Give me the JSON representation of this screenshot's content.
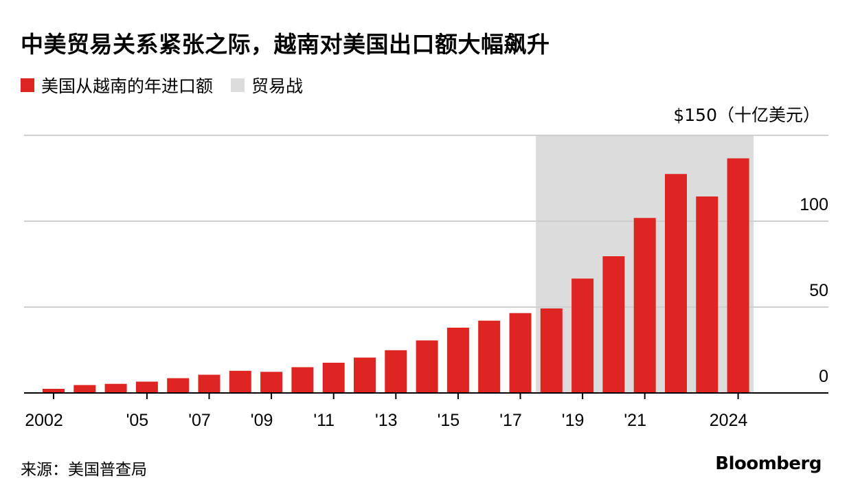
{
  "title": "中美贸易关系紧张之际，越南对美国出口额大幅飙升",
  "legend": [
    {
      "label": "美国从越南的年进口额",
      "color": "#dd2521"
    },
    {
      "label": "贸易战",
      "color": "#dcdcdc"
    }
  ],
  "source": "来源：美国普查局",
  "brand": "Bloomberg",
  "chart_data": {
    "type": "bar",
    "unit_label": "$150（十亿美元）",
    "categories": [
      "2002",
      "2003",
      "2004",
      "2005",
      "2006",
      "2007",
      "2008",
      "2009",
      "2010",
      "2011",
      "2012",
      "2013",
      "2014",
      "2015",
      "2016",
      "2017",
      "2018",
      "2019",
      "2020",
      "2021",
      "2022",
      "2023",
      "2024"
    ],
    "series": [
      {
        "name": "美国从越南的年进口额",
        "values": [
          2.4,
          4.6,
          5.3,
          6.6,
          8.6,
          10.6,
          12.9,
          12.3,
          15.0,
          17.6,
          20.6,
          24.9,
          30.6,
          38.0,
          42.1,
          46.5,
          49.2,
          66.6,
          79.6,
          101.9,
          127.5,
          114.4,
          136.6
        ]
      }
    ],
    "x_tick_labels": [
      {
        "x": "2002",
        "label": "2002"
      },
      {
        "x": "2005",
        "label": "'05"
      },
      {
        "x": "2007",
        "label": "'07"
      },
      {
        "x": "2009",
        "label": "'09"
      },
      {
        "x": "2011",
        "label": "'11"
      },
      {
        "x": "2013",
        "label": "'13"
      },
      {
        "x": "2015",
        "label": "'15"
      },
      {
        "x": "2017",
        "label": "'17"
      },
      {
        "x": "2019",
        "label": "'19"
      },
      {
        "x": "2021",
        "label": "'21"
      },
      {
        "x": "2024",
        "label": "2024"
      }
    ],
    "y_ticks": [
      {
        "value": 0,
        "label": "0"
      },
      {
        "value": 50,
        "label": "50"
      },
      {
        "value": 100,
        "label": "100"
      }
    ],
    "ylim": [
      0,
      150
    ],
    "shaded_range": {
      "from": "2018",
      "to": "2024",
      "label": "贸易战"
    },
    "grid": true,
    "y_axis_side": "right"
  }
}
